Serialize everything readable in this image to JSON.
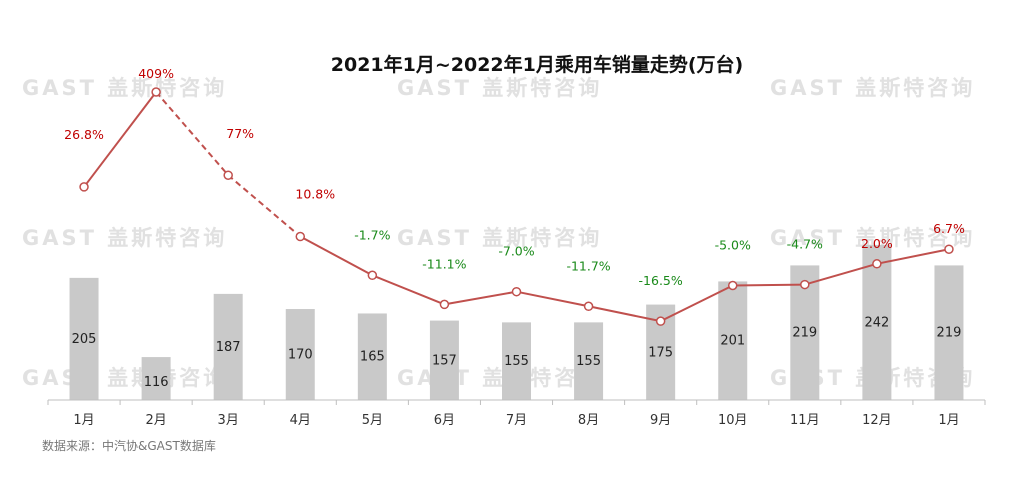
{
  "watermark": "GAST 盖斯特咨询",
  "source": "数据来源：中汽协&GAST数据库",
  "colors": {
    "bar": "#c9c9c9",
    "line": "#c0504d",
    "positive": "#c00000",
    "negative": "#1a8a1a",
    "axis": "#bfbfbf"
  },
  "chart_data": {
    "type": "bar",
    "title": "2021年1月~2022年1月乘用车销量走势(万台)",
    "categories": [
      "1月",
      "2月",
      "3月",
      "4月",
      "5月",
      "6月",
      "7月",
      "8月",
      "9月",
      "10月",
      "11月",
      "12月",
      "1月"
    ],
    "series": [
      {
        "values": [
          205,
          116,
          187,
          170,
          165,
          157,
          155,
          155,
          175,
          201,
          219,
          242,
          219
        ],
        "value_labels": [
          "205",
          "116",
          "187",
          "170",
          "165",
          "157",
          "155",
          "155",
          "175",
          "201",
          "219",
          "242",
          "219"
        ]
      },
      {
        "type": "line",
        "values": [
          26.8,
          409,
          77,
          10.8,
          -1.7,
          -11.1,
          -7.0,
          -11.7,
          -16.5,
          -5.0,
          -4.7,
          2.0,
          6.7
        ],
        "value_labels": [
          "26.8%",
          "409%",
          "77%",
          "10.8%",
          "-1.7%",
          "-11.1%",
          "-7.0%",
          "-11.7%",
          "-16.5%",
          "-5.0%",
          "-4.7%",
          "2.0%",
          "6.7%"
        ],
        "dashed_segments": [
          [
            1,
            2
          ],
          [
            2,
            3
          ]
        ]
      }
    ],
    "grid": false,
    "legend": "none"
  }
}
